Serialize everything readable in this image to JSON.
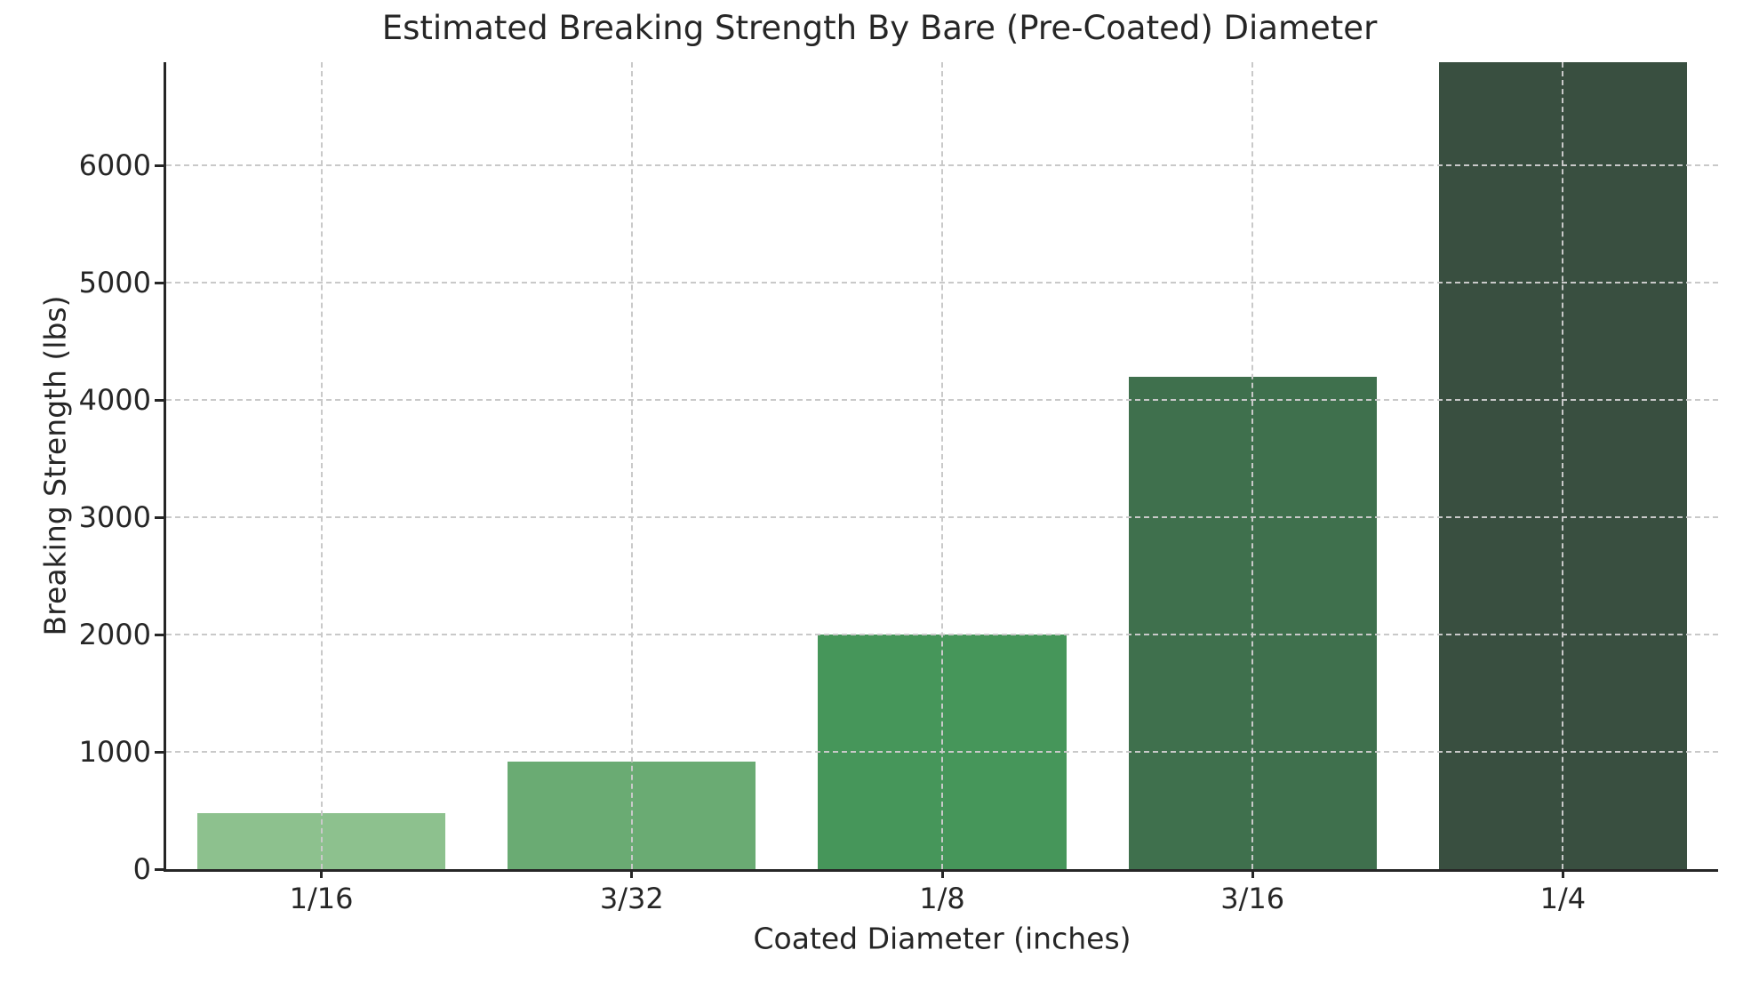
{
  "chart_data": {
    "type": "bar",
    "title": "Estimated Breaking Strength By Bare (Pre-Coated) Diameter",
    "xlabel": "Coated Diameter (inches)",
    "ylabel": "Breaking Strength (lbs)",
    "categories": [
      "1/16",
      "3/32",
      "1/8",
      "3/16",
      "1/4"
    ],
    "values": [
      480,
      920,
      2000,
      4200,
      7000
    ],
    "bar_colors": [
      "#8dc18e",
      "#6aab73",
      "#46965a",
      "#3f704d",
      "#394f40"
    ],
    "ylim": [
      0,
      6880
    ],
    "yticks": [
      0,
      1000,
      2000,
      3000,
      4000,
      5000,
      6000
    ],
    "bar_width_fraction": 0.8,
    "grid": {
      "style": "dashed",
      "color": "#c9c9c9",
      "horizontal": true,
      "vertical": true,
      "drawn_above_bars": true
    },
    "legend": "none",
    "axis_color": "#262626",
    "text_color": "#262626",
    "background_color": "#ffffff"
  }
}
